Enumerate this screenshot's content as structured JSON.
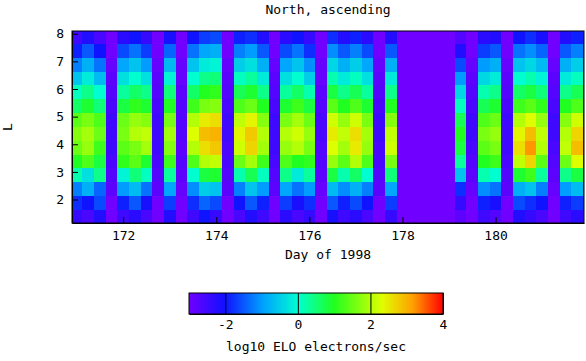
{
  "chart_data": {
    "type": "heatmap",
    "title": "North, ascending",
    "x_label": "Day of 1998",
    "y_label": "L",
    "xlim": [
      170.9,
      181.9
    ],
    "ylim": [
      1.15,
      8.1
    ],
    "xticks": [
      172,
      174,
      176,
      178,
      180
    ],
    "yticks": [
      2,
      3,
      4,
      5,
      6,
      7,
      8
    ],
    "x": [
      171,
      171.25,
      171.5,
      171.75,
      172,
      172.25,
      172.5,
      172.75,
      173,
      173.25,
      173.5,
      173.75,
      174,
      174.25,
      174.5,
      174.75,
      175,
      175.25,
      175.5,
      175.75,
      176,
      176.25,
      176.5,
      176.75,
      177,
      177.25,
      177.5,
      177.75,
      178,
      178.25,
      178.5,
      178.75,
      179,
      179.25,
      179.5,
      179.75,
      180,
      180.25,
      180.5,
      180.75,
      181,
      181.25,
      181.5,
      181.75
    ],
    "y": [
      1.4,
      1.9,
      2.4,
      2.9,
      3.4,
      3.9,
      4.4,
      4.9,
      5.4,
      5.9,
      6.4,
      6.9,
      7.4,
      7.9
    ],
    "values": [
      [
        -2.4,
        -2.6,
        -2.2,
        -3,
        -2.5,
        -2.3,
        -2.6,
        -3,
        -2.2,
        -3,
        -2.5,
        -2.0,
        -2.4,
        -3,
        -2.6,
        -2.2,
        -2.5,
        -3,
        -2.3,
        -2.6,
        -2.4,
        -3,
        -2.1,
        -2.5,
        -2.3,
        -2.6,
        -3,
        -2.4,
        -3,
        -3,
        -3,
        -3,
        -3,
        -2.8,
        -3,
        -2.5,
        -2.7,
        -3,
        -2.2,
        -2.4,
        -2.6,
        -3,
        -2.5,
        -2.3
      ],
      [
        -1.8,
        -2.0,
        -1.6,
        -3,
        -1.9,
        -1.5,
        -2.1,
        -3,
        -1.7,
        -3,
        -1.8,
        -1.4,
        -1.6,
        -3,
        -2.0,
        -1.5,
        -1.9,
        -3,
        -1.7,
        -2.1,
        -1.8,
        -3,
        -1.5,
        -1.9,
        -1.6,
        -2.0,
        -3,
        -1.7,
        -3,
        -3,
        -3,
        -3,
        -3,
        -2.4,
        -3,
        -1.9,
        -2.1,
        -3,
        -1.6,
        -1.8,
        -2.0,
        -3,
        -1.9,
        -1.7
      ],
      [
        -1.2,
        -0.8,
        -1.4,
        -2.8,
        -1.0,
        -0.7,
        -1.3,
        -2.8,
        -0.9,
        -2.9,
        -1.1,
        -0.5,
        -0.6,
        -2.8,
        -1.2,
        -0.6,
        -1.0,
        -2.8,
        -0.9,
        -1.3,
        -1.0,
        -2.9,
        -0.7,
        -1.1,
        -0.8,
        -1.2,
        -2.8,
        -0.9,
        -3,
        -3,
        -3,
        -3,
        -3,
        -1.8,
        -2.9,
        -1.1,
        -1.3,
        -2.8,
        -0.8,
        -0.6,
        -1.2,
        -2.9,
        -1.0,
        -0.7
      ],
      [
        0.2,
        -0.3,
        0.4,
        -2.7,
        -0.1,
        0.5,
        0.1,
        -2.7,
        0.3,
        -2.8,
        0.0,
        0.8,
        0.9,
        -2.7,
        0.2,
        0.7,
        0.1,
        -2.7,
        0.4,
        -0.2,
        0.3,
        -2.8,
        0.8,
        0.2,
        0.6,
        0.0,
        -2.7,
        0.5,
        -3,
        -3,
        -3,
        -3,
        -3,
        -0.6,
        -2.8,
        0.2,
        0.0,
        -2.7,
        0.9,
        1.2,
        0.3,
        -2.8,
        0.4,
        0.8
      ],
      [
        1.0,
        1.3,
        0.8,
        -2.6,
        1.1,
        1.4,
        0.9,
        -2.6,
        1.2,
        -2.7,
        1.3,
        2.0,
        2.1,
        -2.6,
        1.5,
        1.9,
        1.2,
        -2.6,
        1.3,
        1.0,
        1.1,
        -2.7,
        1.8,
        1.4,
        2.0,
        1.3,
        -2.6,
        1.6,
        -3,
        -3,
        -3,
        -3,
        -3,
        0.3,
        -2.7,
        1.0,
        1.2,
        -2.6,
        2.1,
        2.7,
        1.4,
        -2.7,
        1.5,
        2.3
      ],
      [
        1.5,
        1.8,
        1.2,
        -2.5,
        1.4,
        1.6,
        1.9,
        -2.5,
        1.7,
        -2.8,
        2.0,
        2.6,
        2.8,
        -2.6,
        2.2,
        2.7,
        1.9,
        -2.5,
        1.8,
        2.0,
        1.6,
        -2.7,
        2.3,
        1.9,
        2.5,
        1.8,
        -2.6,
        2.2,
        -3,
        -3,
        -3,
        -3,
        -3,
        0.8,
        -2.6,
        1.4,
        1.6,
        -2.5,
        2.6,
        3.2,
        2.0,
        -2.6,
        2.1,
        2.9
      ],
      [
        1.7,
        1.9,
        1.5,
        -2.5,
        1.6,
        2.0,
        2.1,
        -2.5,
        1.9,
        -2.7,
        2.3,
        2.9,
        3.0,
        -2.5,
        2.4,
        2.8,
        2.0,
        -2.5,
        2.0,
        2.2,
        1.8,
        -2.6,
        2.5,
        2.1,
        2.6,
        1.9,
        -2.5,
        2.1,
        -3,
        -3,
        -3,
        -3,
        -3,
        1.0,
        -2.5,
        1.6,
        1.8,
        -2.5,
        2.4,
        2.9,
        2.1,
        -2.5,
        2.0,
        2.7
      ],
      [
        1.4,
        1.6,
        1.3,
        -2.5,
        1.5,
        1.8,
        1.7,
        -2.5,
        1.6,
        -2.7,
        2.0,
        2.5,
        2.6,
        -2.5,
        2.1,
        2.4,
        1.7,
        -2.5,
        1.6,
        1.9,
        1.5,
        -2.6,
        2.2,
        1.8,
        2.2,
        1.6,
        -2.5,
        1.7,
        -3,
        -3,
        -3,
        -3,
        -3,
        0.7,
        -2.5,
        1.3,
        1.5,
        -2.5,
        2.0,
        2.3,
        1.8,
        -2.5,
        1.7,
        2.2
      ],
      [
        0.6,
        0.9,
        0.5,
        -2.6,
        0.8,
        1.1,
        0.9,
        -2.6,
        1.0,
        -2.7,
        1.2,
        1.6,
        1.7,
        -2.6,
        1.3,
        1.5,
        1.0,
        -2.6,
        0.9,
        1.2,
        0.8,
        -2.7,
        1.4,
        1.0,
        1.3,
        0.9,
        -2.6,
        1.0,
        -3,
        -3,
        -3,
        -3,
        -3,
        0.1,
        -2.6,
        0.7,
        0.9,
        -2.6,
        1.2,
        1.4,
        1.1,
        -2.6,
        1.0,
        1.3
      ],
      [
        0.1,
        0.4,
        0.0,
        -2.7,
        0.3,
        0.6,
        0.4,
        -2.7,
        0.5,
        -2.8,
        0.6,
        1.0,
        1.1,
        -2.7,
        0.7,
        0.9,
        0.4,
        -2.7,
        0.3,
        0.6,
        0.2,
        -2.8,
        0.8,
        0.4,
        0.7,
        0.3,
        -2.7,
        0.4,
        -3,
        -3,
        -3,
        -3,
        -3,
        -0.4,
        -2.7,
        0.2,
        0.4,
        -2.7,
        0.6,
        0.8,
        0.5,
        -2.7,
        0.4,
        0.7
      ],
      [
        -0.6,
        -0.2,
        -0.7,
        -2.8,
        -0.3,
        0.0,
        -0.3,
        -2.8,
        -0.1,
        -2.9,
        0.0,
        0.4,
        0.5,
        -2.8,
        0.1,
        0.3,
        -0.2,
        -2.8,
        -0.3,
        0.0,
        -0.5,
        -2.9,
        0.2,
        -0.2,
        0.1,
        -0.3,
        -2.8,
        -0.2,
        -3,
        -3,
        -3,
        -3,
        -3,
        -1.0,
        -2.8,
        -0.4,
        -0.2,
        -2.8,
        0.0,
        0.2,
        -0.1,
        -2.8,
        -0.2,
        0.1
      ],
      [
        -1.2,
        -0.8,
        -1.3,
        -2.9,
        -0.9,
        -0.6,
        -1.0,
        -2.9,
        -0.7,
        -2.9,
        -0.6,
        -0.2,
        -0.1,
        -2.9,
        -0.5,
        -0.3,
        -0.8,
        -2.9,
        -0.9,
        -0.6,
        -1.1,
        -2.9,
        -0.4,
        -0.8,
        -0.5,
        -0.9,
        -2.9,
        -0.8,
        -3,
        -3,
        -3,
        -3,
        -3,
        -1.6,
        -2.9,
        -1.0,
        -0.8,
        -2.9,
        -0.6,
        -0.4,
        -0.7,
        -2.9,
        -0.8,
        -0.5
      ],
      [
        -1.9,
        -1.5,
        -2.0,
        -3,
        -1.6,
        -1.3,
        -1.7,
        -3,
        -1.4,
        -3,
        -1.3,
        -0.9,
        -0.8,
        -3,
        -1.2,
        -1.0,
        -1.5,
        -3,
        -1.6,
        -1.3,
        -1.8,
        -3,
        -1.1,
        -1.5,
        -1.2,
        -1.6,
        -3,
        -1.5,
        -3,
        -3,
        -3,
        -3,
        -3,
        -2.2,
        -3,
        -1.7,
        -1.5,
        -3,
        -1.3,
        -1.1,
        -1.4,
        -3,
        -1.5,
        -1.2
      ],
      [
        -2.5,
        -2.2,
        -2.6,
        -3,
        -2.3,
        -2.0,
        -2.4,
        -3,
        -2.1,
        -3,
        -2.0,
        -1.7,
        -1.6,
        -3,
        -1.9,
        -1.8,
        -2.2,
        -3,
        -2.3,
        -2.0,
        -2.4,
        -3,
        -1.8,
        -2.2,
        -1.9,
        -2.3,
        -3,
        -2.2,
        -3,
        -3,
        -3,
        -3,
        -3,
        -2.7,
        -3,
        -2.3,
        -2.2,
        -3,
        -2.0,
        -1.8,
        -2.1,
        -3,
        -2.2,
        -1.9
      ]
    ],
    "colorbar": {
      "label": "log10 ELO electrons/sec",
      "range": [
        -3,
        4
      ],
      "ticks": [
        -2,
        0,
        2,
        4
      ]
    }
  }
}
